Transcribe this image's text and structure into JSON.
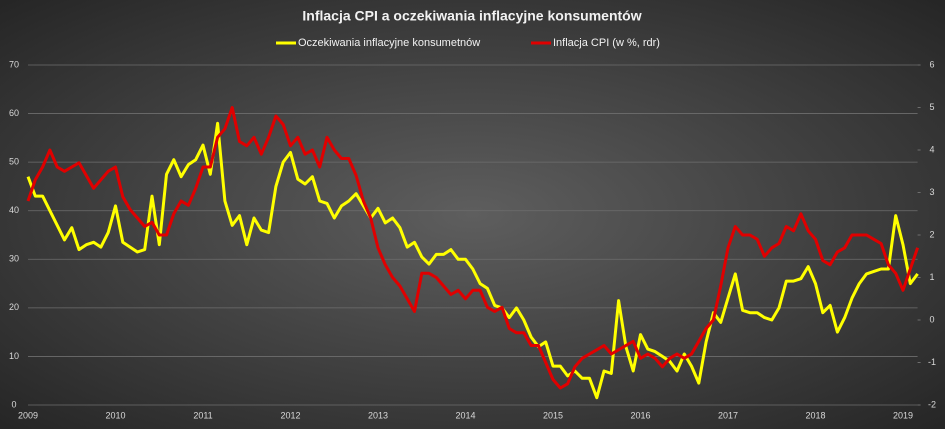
{
  "chart_data": {
    "type": "line",
    "title": "Inflacja CPI a oczekiwania inflacyjne konsumentów",
    "categories": [
      "2009",
      null,
      null,
      null,
      null,
      null,
      null,
      null,
      null,
      null,
      null,
      null,
      "2010",
      null,
      null,
      null,
      null,
      null,
      null,
      null,
      null,
      null,
      null,
      null,
      "2011",
      null,
      null,
      null,
      null,
      null,
      null,
      null,
      null,
      null,
      null,
      null,
      "2012",
      null,
      null,
      null,
      null,
      null,
      null,
      null,
      null,
      null,
      null,
      null,
      "2013",
      null,
      null,
      null,
      null,
      null,
      null,
      null,
      null,
      null,
      null,
      null,
      "2014",
      null,
      null,
      null,
      null,
      null,
      null,
      null,
      null,
      null,
      null,
      null,
      "2015",
      null,
      null,
      null,
      null,
      null,
      null,
      null,
      null,
      null,
      null,
      null,
      "2016",
      null,
      null,
      null,
      null,
      null,
      null,
      null,
      null,
      null,
      null,
      null,
      "2017",
      null,
      null,
      null,
      null,
      null,
      null,
      null,
      null,
      null,
      null,
      null,
      "2018",
      null,
      null,
      null,
      null,
      null,
      null,
      null,
      null,
      null,
      null,
      null,
      "2019",
      null,
      null
    ],
    "series": [
      {
        "name": "Oczekiwania inflacyjne konsumetnów",
        "color": "#ffff00",
        "axis": "y",
        "values": [
          47,
          43,
          43,
          40,
          37,
          34,
          36.5,
          32,
          33,
          33.5,
          32.5,
          35.5,
          41,
          33.5,
          32.5,
          31.5,
          32,
          43,
          33,
          47.5,
          50.5,
          47,
          49.5,
          50.5,
          53.5,
          47.5,
          58,
          42,
          37,
          39,
          33,
          38.5,
          36,
          35.5,
          45,
          50,
          52,
          46.5,
          45.5,
          47,
          42,
          41.5,
          38.5,
          41,
          42,
          43.5,
          41,
          38.5,
          40.5,
          37.5,
          38.5,
          36.5,
          32.5,
          33.5,
          30.5,
          29,
          31,
          31,
          32,
          30,
          30,
          28,
          25,
          24,
          20.5,
          20,
          18,
          20,
          17.5,
          14,
          12,
          13,
          8,
          8,
          6,
          7,
          5.5,
          5.5,
          1.5,
          7,
          6.5,
          21.5,
          12,
          7,
          14.5,
          11.5,
          11,
          10,
          9,
          7,
          10.5,
          8,
          4.5,
          13,
          19,
          17,
          22,
          27,
          19.5,
          19,
          19,
          18,
          17.5,
          20,
          25.5,
          25.5,
          26,
          28.5,
          25,
          19,
          20.5,
          15,
          18,
          22,
          25,
          27,
          27.5,
          28,
          28,
          39,
          33,
          25,
          27
        ]
      },
      {
        "name": "Inflacja CPI (w %, rdr)",
        "color": "#e00000",
        "axis": "y2",
        "values": [
          2.8,
          3.3,
          3.6,
          4.0,
          3.6,
          3.5,
          3.6,
          3.7,
          3.4,
          3.1,
          3.3,
          3.5,
          3.6,
          2.9,
          2.6,
          2.4,
          2.2,
          2.3,
          2.0,
          2.0,
          2.5,
          2.8,
          2.7,
          3.1,
          3.6,
          3.6,
          4.3,
          4.5,
          5.0,
          4.2,
          4.1,
          4.3,
          3.9,
          4.3,
          4.8,
          4.6,
          4.1,
          4.3,
          3.9,
          4.0,
          3.6,
          4.3,
          4.0,
          3.8,
          3.8,
          3.4,
          2.8,
          2.4,
          1.7,
          1.3,
          1.0,
          0.8,
          0.5,
          0.2,
          1.1,
          1.1,
          1.0,
          0.8,
          0.6,
          0.7,
          0.5,
          0.7,
          0.7,
          0.3,
          0.2,
          0.3,
          -0.2,
          -0.3,
          -0.3,
          -0.6,
          -0.6,
          -1.0,
          -1.4,
          -1.6,
          -1.5,
          -1.1,
          -0.9,
          -0.8,
          -0.7,
          -0.6,
          -0.8,
          -0.7,
          -0.6,
          -0.5,
          -0.9,
          -0.8,
          -0.9,
          -1.1,
          -0.9,
          -0.8,
          -0.9,
          -0.8,
          -0.5,
          -0.2,
          0.0,
          0.8,
          1.7,
          2.2,
          2.0,
          2.0,
          1.9,
          1.5,
          1.7,
          1.8,
          2.2,
          2.1,
          2.5,
          2.1,
          1.9,
          1.4,
          1.3,
          1.6,
          1.7,
          2.0,
          2.0,
          2.0,
          1.9,
          1.8,
          1.3,
          1.1,
          0.7,
          1.2,
          1.7
        ]
      }
    ],
    "ylim": [
      0,
      70
    ],
    "yticks": [
      0,
      10,
      20,
      30,
      40,
      50,
      60,
      70
    ],
    "y2lim": [
      -2,
      6
    ],
    "y2ticks": [
      -2,
      -1,
      0,
      1,
      2,
      3,
      4,
      5,
      6
    ],
    "grid": true,
    "legend": "top"
  }
}
